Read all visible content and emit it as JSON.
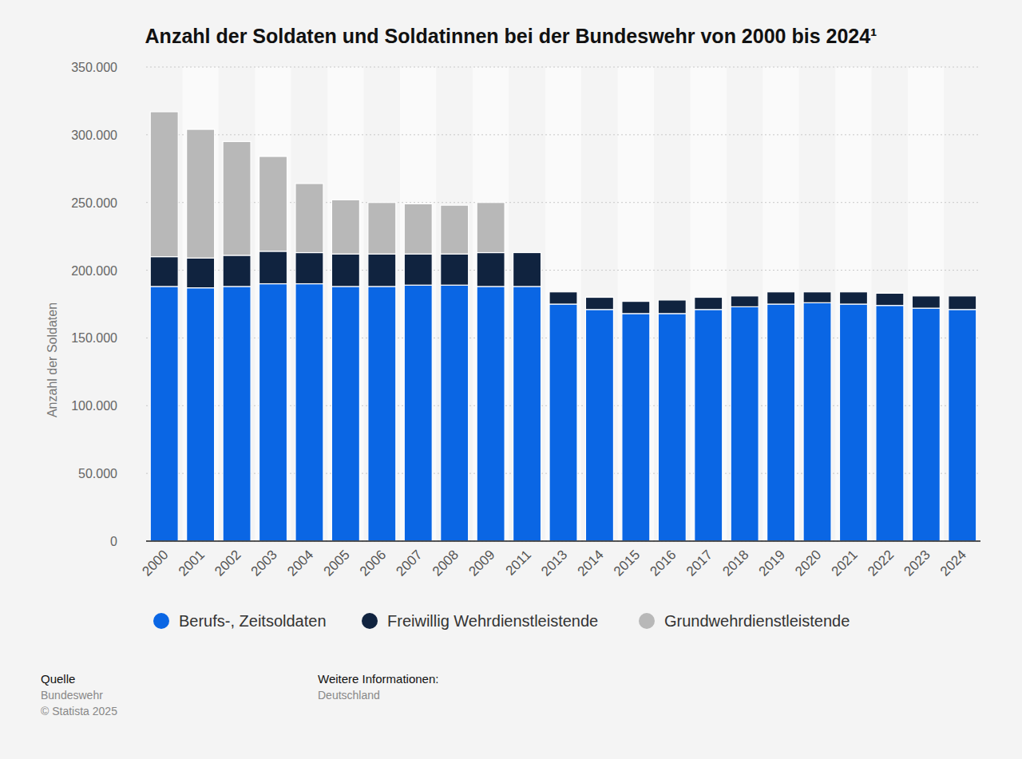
{
  "chart_data": {
    "type": "bar",
    "stacked": true,
    "grid": true,
    "legend": "bottom",
    "title": "Anzahl der Soldaten und Soldatinnen bei der Bundeswehr von 2000 bis 2024¹",
    "y_label": "Anzahl der Soldaten",
    "source_label": "Quelle",
    "source": "Bundeswehr",
    "copyright": "© Statista 2025",
    "info_label": "Weitere Informationen:",
    "info": "Deutschland",
    "categories": [
      "2000",
      "2001",
      "2002",
      "2003",
      "2004",
      "2005",
      "2006",
      "2007",
      "2008",
      "2009",
      "2011",
      "2013",
      "2014",
      "2015",
      "2016",
      "2017",
      "2018",
      "2019",
      "2020",
      "2021",
      "2022",
      "2023",
      "2024"
    ],
    "series": [
      {
        "name": "Berufs-, Zeitsoldaten",
        "color": "#0a66e4",
        "values": [
          188000,
          187000,
          188000,
          190000,
          190000,
          188000,
          188000,
          189000,
          189000,
          188000,
          188000,
          175000,
          171000,
          168000,
          168000,
          171000,
          173000,
          175000,
          176000,
          175000,
          174000,
          172000,
          171000
        ]
      },
      {
        "name": "Freiwillig Wehrdienstleistende",
        "color": "#10233f",
        "values": [
          22000,
          22000,
          23000,
          24000,
          23000,
          24000,
          24000,
          23000,
          23000,
          25000,
          25000,
          9000,
          9000,
          9000,
          10000,
          9000,
          8000,
          9000,
          8000,
          9000,
          9000,
          9000,
          10000
        ]
      },
      {
        "name": "Grundwehrdienstleistende",
        "color": "#b8b8b8",
        "values": [
          107000,
          95000,
          84000,
          70000,
          51000,
          40000,
          38000,
          37000,
          36000,
          37000,
          null,
          null,
          null,
          null,
          null,
          null,
          null,
          null,
          null,
          null,
          null,
          null,
          null
        ]
      }
    ],
    "ylim": [
      0,
      350000
    ],
    "yticks": [
      0,
      {
        "value": 50000,
        "label": "50.000"
      },
      {
        "value": 100000,
        "label": "100.000"
      },
      {
        "value": 150000,
        "label": "150.000"
      },
      {
        "value": 200000,
        "label": "200.000"
      },
      {
        "value": 250000,
        "label": "250.000"
      },
      {
        "value": 300000,
        "label": "300.000"
      },
      {
        "value": 350000,
        "label": "350.000"
      }
    ]
  }
}
